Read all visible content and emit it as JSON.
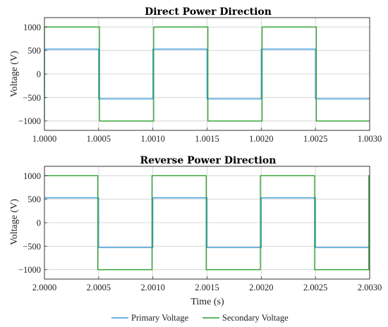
{
  "chart_data": [
    {
      "type": "line",
      "title": "Direct Power Direction",
      "ylabel": "Voltage (V)",
      "xlabel": "",
      "xlim": [
        1.0,
        1.003
      ],
      "ylim": [
        -1200,
        1200
      ],
      "xticks": [
        1.0,
        1.0005,
        1.001,
        1.0015,
        1.002,
        1.0025,
        1.003
      ],
      "xtick_labels": [
        "1.0000",
        "1.0005",
        "1.0010",
        "1.0015",
        "1.0020",
        "1.0025",
        "1.0030"
      ],
      "yticks": [
        1000,
        500,
        0,
        -500,
        -1000
      ],
      "ytick_labels": [
        "1000",
        "500",
        "0",
        "−500",
        "−1000"
      ],
      "grid": true,
      "series": [
        {
          "name": "Primary Voltage",
          "color": "#3a9ad9",
          "x": [
            1.0,
            1.0,
            1.0005,
            1.0005,
            1.001,
            1.001,
            1.0015,
            1.0015,
            1.002,
            1.002,
            1.0025,
            1.0025,
            1.003
          ],
          "y": [
            -530,
            530,
            530,
            -530,
            -530,
            530,
            530,
            -530,
            -530,
            530,
            530,
            -530,
            -530
          ]
        },
        {
          "name": "Secondary Voltage",
          "color": "#2ca02c",
          "x": [
            1.0,
            1.0,
            1.000508,
            1.000508,
            1.001008,
            1.001008,
            1.001508,
            1.001508,
            1.002008,
            1.002008,
            1.002508,
            1.002508,
            1.003
          ],
          "y": [
            -1000,
            1000,
            1000,
            -1000,
            -1000,
            1000,
            1000,
            -1000,
            -1000,
            1000,
            1000,
            -1000,
            -1000
          ]
        }
      ]
    },
    {
      "type": "line",
      "title": "Reverse Power Direction",
      "ylabel": "Voltage (V)",
      "xlabel": "Time (s)",
      "xlim": [
        2.0,
        2.003
      ],
      "ylim": [
        -1200,
        1200
      ],
      "xticks": [
        2.0,
        2.0005,
        2.001,
        2.0015,
        2.002,
        2.0025,
        2.003
      ],
      "xtick_labels": [
        "2.0000",
        "2.0005",
        "2.0010",
        "2.0015",
        "2.0020",
        "2.0025",
        "2.0030"
      ],
      "yticks": [
        1000,
        500,
        0,
        -500,
        -1000
      ],
      "ytick_labels": [
        "1000",
        "500",
        "0",
        "−500",
        "−1000"
      ],
      "grid": true,
      "series": [
        {
          "name": "Primary Voltage",
          "color": "#3a9ad9",
          "x": [
            2.0,
            2.0005,
            2.0005,
            2.001,
            2.001,
            2.0015,
            2.0015,
            2.002,
            2.002,
            2.0025,
            2.0025,
            2.003
          ],
          "y": [
            530,
            530,
            -530,
            -530,
            530,
            530,
            -530,
            -530,
            530,
            530,
            -530,
            -530
          ]
        },
        {
          "name": "Secondary Voltage",
          "color": "#2ca02c",
          "x": [
            2.0,
            2.000492,
            2.000492,
            2.000992,
            2.000992,
            2.001492,
            2.001492,
            2.001992,
            2.001992,
            2.002492,
            2.002492,
            2.002992,
            2.002992,
            2.003
          ],
          "y": [
            1000,
            1000,
            -1000,
            -1000,
            1000,
            1000,
            -1000,
            -1000,
            1000,
            1000,
            -1000,
            -1000,
            1000,
            1000
          ]
        }
      ]
    }
  ],
  "legend": {
    "position": "bottom-center",
    "items": [
      {
        "label": "Primary Voltage",
        "color": "#3a9ad9"
      },
      {
        "label": "Secondary Voltage",
        "color": "#2ca02c"
      }
    ]
  }
}
